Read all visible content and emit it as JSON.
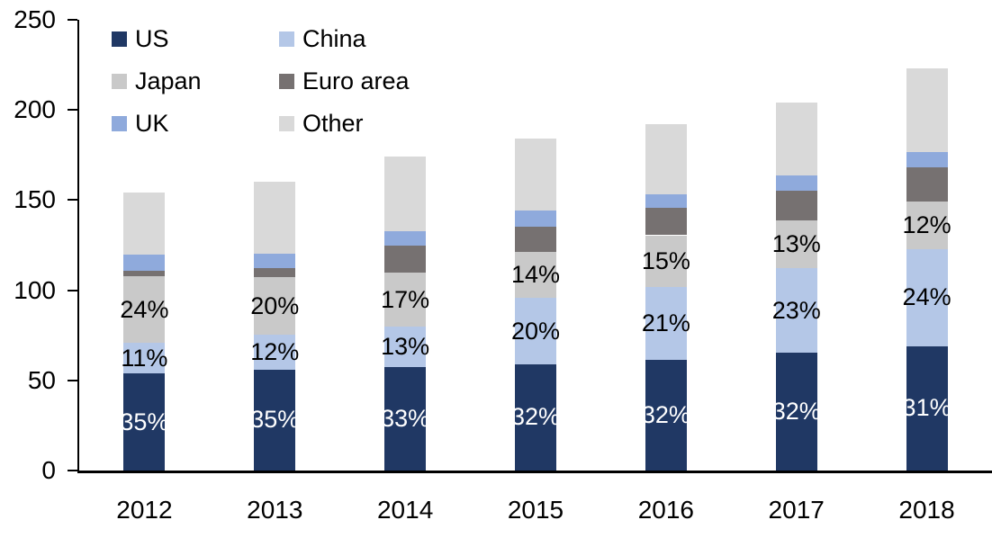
{
  "chart_data": {
    "type": "bar",
    "stacked": true,
    "title": "",
    "xlabel": "",
    "ylabel": "",
    "ylim": [
      0,
      250
    ],
    "y_ticks": [
      "0",
      "50",
      "100",
      "150",
      "200",
      "250"
    ],
    "grid": false,
    "legend_position": "top-left-two-columns",
    "categories": [
      "2012",
      "2013",
      "2014",
      "2015",
      "2016",
      "2017",
      "2018"
    ],
    "totals": [
      154,
      160,
      174,
      184,
      192,
      204,
      223
    ],
    "series": [
      {
        "name": "US",
        "color": "#203864",
        "values": [
          53.9,
          56.0,
          57.4,
          58.9,
          61.4,
          65.3,
          69.1
        ],
        "labels": [
          "35%",
          "35%",
          "33%",
          "32%",
          "32%",
          "32%",
          "31%"
        ],
        "label_color": "#ffffff"
      },
      {
        "name": "China",
        "color": "#B4C7E7",
        "values": [
          16.9,
          19.2,
          22.6,
          36.8,
          40.3,
          46.9,
          53.5
        ],
        "labels": [
          "11%",
          "12%",
          "13%",
          "20%",
          "21%",
          "23%",
          "24%"
        ],
        "label_color": "#000000"
      },
      {
        "name": "Japan",
        "color": "#C9C9C9",
        "values": [
          37.0,
          32.0,
          29.6,
          25.8,
          28.8,
          26.5,
          26.8
        ],
        "labels": [
          "24%",
          "20%",
          "17%",
          "14%",
          "15%",
          "13%",
          "12%"
        ],
        "label_color": "#000000"
      },
      {
        "name": "Euro area",
        "color": "#767171",
        "values": [
          3.0,
          5.0,
          15.0,
          13.5,
          15.0,
          16.5,
          19.0
        ],
        "labels": [
          "",
          "",
          "",
          "",
          "",
          "",
          ""
        ],
        "label_color": "#000000"
      },
      {
        "name": "UK",
        "color": "#8FAADC",
        "values": [
          9.0,
          8.0,
          8.0,
          9.0,
          7.5,
          8.5,
          8.4
        ],
        "labels": [
          "",
          "",
          "",
          "",
          "",
          "",
          ""
        ],
        "label_color": "#000000"
      },
      {
        "name": "Other",
        "color": "#D9D9D9",
        "values": [
          34.2,
          39.8,
          41.4,
          40.0,
          39.0,
          40.3,
          46.2
        ],
        "labels": [
          "",
          "",
          "",
          "",
          "",
          "",
          ""
        ],
        "label_color": "#000000"
      }
    ],
    "legend_order": [
      "US",
      "China",
      "Japan",
      "Euro area",
      "UK",
      "Other"
    ]
  },
  "layout_colors": {
    "axis": "#000000",
    "background": "#ffffff"
  }
}
